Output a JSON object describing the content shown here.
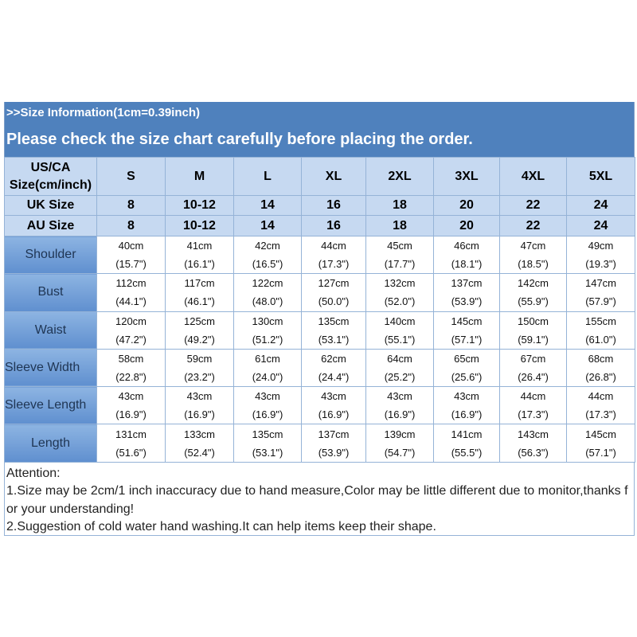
{
  "header": {
    "line1": ">>Size Information(1cm=0.39inch)",
    "line2": "Please check the size chart carefully before placing the order."
  },
  "table": {
    "head": {
      "label_lines": [
        "US/CA",
        "Size(cm/inch)"
      ],
      "sizes": [
        "S",
        "M",
        "L",
        "XL",
        "2XL",
        "3XL",
        "4XL",
        "5XL"
      ]
    },
    "uk": {
      "label": "UK Size",
      "values": [
        "8",
        "10-12",
        "14",
        "16",
        "18",
        "20",
        "22",
        "24"
      ]
    },
    "au": {
      "label": "AU Size",
      "values": [
        "8",
        "10-12",
        "14",
        "16",
        "18",
        "20",
        "22",
        "24"
      ]
    },
    "rows": [
      {
        "label": "Shoulder",
        "cells": [
          [
            "40cm",
            "(15.7\")"
          ],
          [
            "41cm",
            "(16.1\")"
          ],
          [
            "42cm",
            "(16.5\")"
          ],
          [
            "44cm",
            "(17.3\")"
          ],
          [
            "45cm",
            "(17.7\")"
          ],
          [
            "46cm",
            "(18.1\")"
          ],
          [
            "47cm",
            "(18.5\")"
          ],
          [
            "49cm",
            "(19.3\")"
          ]
        ]
      },
      {
        "label": "Bust",
        "cells": [
          [
            "112cm",
            "(44.1\")"
          ],
          [
            "117cm",
            "(46.1\")"
          ],
          [
            "122cm",
            "(48.0\")"
          ],
          [
            "127cm",
            "(50.0\")"
          ],
          [
            "132cm",
            "(52.0\")"
          ],
          [
            "137cm",
            "(53.9\")"
          ],
          [
            "142cm",
            "(55.9\")"
          ],
          [
            "147cm",
            "(57.9\")"
          ]
        ]
      },
      {
        "label": "Waist",
        "cells": [
          [
            "120cm",
            "(47.2\")"
          ],
          [
            "125cm",
            "(49.2\")"
          ],
          [
            "130cm",
            "(51.2\")"
          ],
          [
            "135cm",
            "(53.1\")"
          ],
          [
            "140cm",
            "(55.1\")"
          ],
          [
            "145cm",
            "(57.1\")"
          ],
          [
            "150cm",
            "(59.1\")"
          ],
          [
            "155cm",
            "(61.0\")"
          ]
        ]
      },
      {
        "label": "Sleeve Width",
        "cells": [
          [
            "58cm",
            "(22.8\")"
          ],
          [
            "59cm",
            "(23.2\")"
          ],
          [
            "61cm",
            "(24.0\")"
          ],
          [
            "62cm",
            "(24.4\")"
          ],
          [
            "64cm",
            "(25.2\")"
          ],
          [
            "65cm",
            "(25.6\")"
          ],
          [
            "67cm",
            "(26.4\")"
          ],
          [
            "68cm",
            "(26.8\")"
          ]
        ]
      },
      {
        "label": "Sleeve Length",
        "cells": [
          [
            "43cm",
            "(16.9\")"
          ],
          [
            "43cm",
            "(16.9\")"
          ],
          [
            "43cm",
            "(16.9\")"
          ],
          [
            "43cm",
            "(16.9\")"
          ],
          [
            "43cm",
            "(16.9\")"
          ],
          [
            "43cm",
            "(16.9\")"
          ],
          [
            "44cm",
            "(17.3\")"
          ],
          [
            "44cm",
            "(17.3\")"
          ]
        ]
      },
      {
        "label": "Length",
        "cells": [
          [
            "131cm",
            "(51.6\")"
          ],
          [
            "133cm",
            "(52.4\")"
          ],
          [
            "135cm",
            "(53.1\")"
          ],
          [
            "137cm",
            "(53.9\")"
          ],
          [
            "139cm",
            "(54.7\")"
          ],
          [
            "141cm",
            "(55.5\")"
          ],
          [
            "143cm",
            "(56.3\")"
          ],
          [
            "145cm",
            "(57.1\")"
          ]
        ]
      }
    ]
  },
  "notes": [
    "Attention:",
    "1.Size may be 2cm/1 inch inaccuracy due to hand measure,Color may be little different due to monitor,thanks for your understanding!",
    "2.Suggestion of cold water hand washing.It can help items keep their shape."
  ]
}
